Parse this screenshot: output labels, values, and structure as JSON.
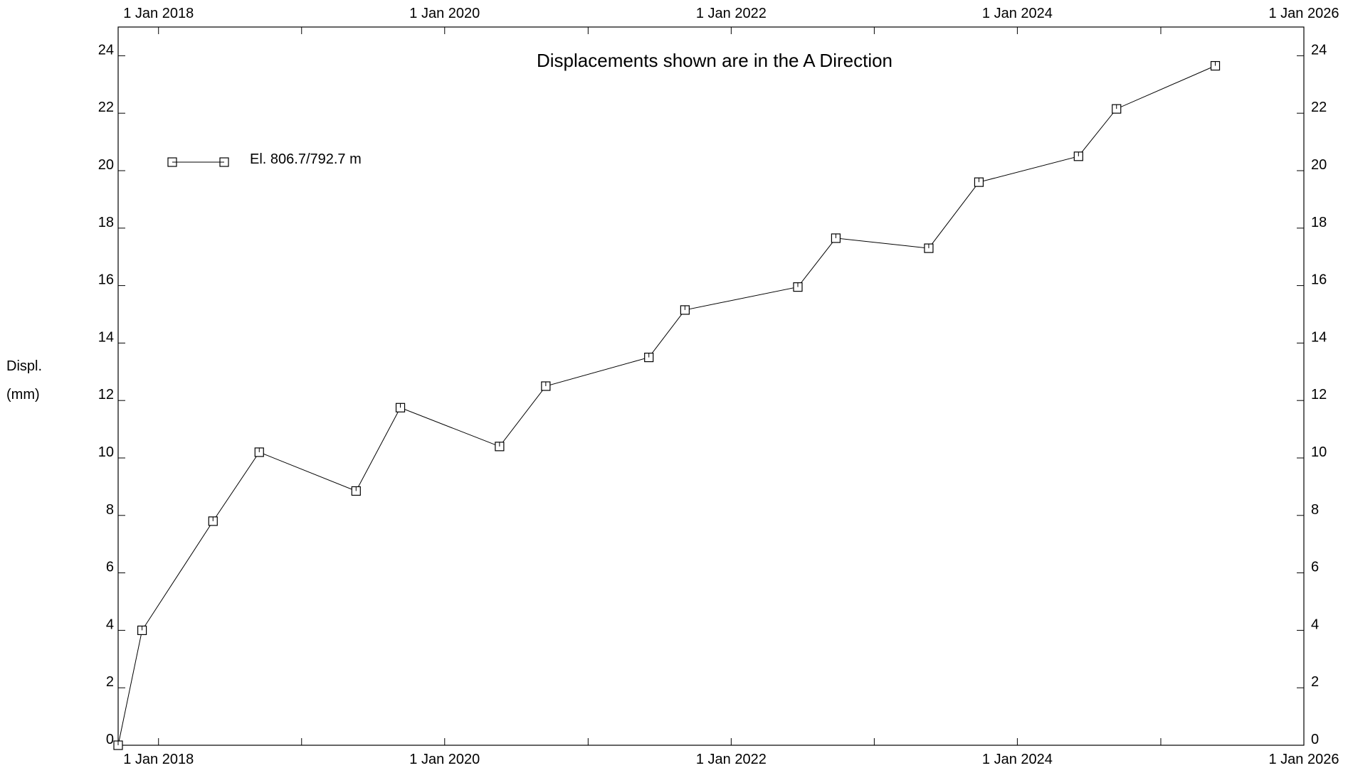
{
  "chart_data": {
    "type": "line",
    "title": "Displacements shown are in the  A Direction",
    "ylabel": [
      "Displ.",
      "(mm)"
    ],
    "xlabel": "",
    "x_axis_type": "date",
    "xlim": [
      "2017-09-20",
      "2026-01-01"
    ],
    "ylim": [
      0,
      25
    ],
    "x_ticks": [
      {
        "date": "2018-01-01",
        "label": "1 Jan 2018"
      },
      {
        "date": "2020-01-01",
        "label": "1 Jan 2020"
      },
      {
        "date": "2022-01-01",
        "label": "1 Jan 2022"
      },
      {
        "date": "2024-01-01",
        "label": "1 Jan 2024"
      },
      {
        "date": "2026-01-01",
        "label": "1 Jan 2026"
      }
    ],
    "x_minor_ticks": [
      "2019-01-01",
      "2021-01-01",
      "2023-01-01",
      "2025-01-01"
    ],
    "y_ticks": [
      0,
      2,
      4,
      6,
      8,
      10,
      12,
      14,
      16,
      18,
      20,
      22,
      24
    ],
    "grid": false,
    "legend_position": "top-left",
    "marker": "square",
    "series": [
      {
        "name": "El. 806.7/792.7 m",
        "color": "#000000",
        "points": [
          {
            "x": "2017-09-20",
            "y": 0.0
          },
          {
            "x": "2017-11-20",
            "y": 4.0
          },
          {
            "x": "2018-05-20",
            "y": 7.8
          },
          {
            "x": "2018-09-15",
            "y": 10.2
          },
          {
            "x": "2019-05-20",
            "y": 8.85
          },
          {
            "x": "2019-09-10",
            "y": 11.75
          },
          {
            "x": "2020-05-20",
            "y": 10.4
          },
          {
            "x": "2020-09-15",
            "y": 12.5
          },
          {
            "x": "2021-06-05",
            "y": 13.5
          },
          {
            "x": "2021-09-05",
            "y": 15.15
          },
          {
            "x": "2022-06-20",
            "y": 15.95
          },
          {
            "x": "2022-09-25",
            "y": 17.65
          },
          {
            "x": "2023-05-20",
            "y": 17.3
          },
          {
            "x": "2023-09-25",
            "y": 19.6
          },
          {
            "x": "2024-06-05",
            "y": 20.5
          },
          {
            "x": "2024-09-10",
            "y": 22.15
          },
          {
            "x": "2025-05-20",
            "y": 23.65
          }
        ]
      }
    ]
  }
}
